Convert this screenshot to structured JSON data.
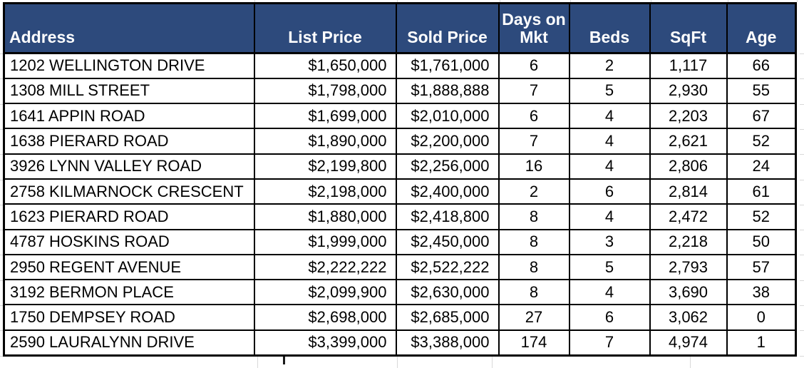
{
  "spreadsheet": {
    "columns": [
      {
        "key": "address",
        "label": "Address"
      },
      {
        "key": "list_price",
        "label": "List Price"
      },
      {
        "key": "sold_price",
        "label": "Sold Price"
      },
      {
        "key": "days_on_mkt",
        "label": "Days on\nMkt"
      },
      {
        "key": "beds",
        "label": "Beds"
      },
      {
        "key": "sqft",
        "label": "SqFt"
      },
      {
        "key": "age",
        "label": "Age"
      }
    ],
    "rows": [
      [
        "1202 WELLINGTON DRIVE",
        "$1,650,000",
        "$1,761,000",
        "6",
        "2",
        "1,117",
        "66"
      ],
      [
        "1308 MILL STREET",
        "$1,798,000",
        "$1,888,888",
        "7",
        "5",
        "2,930",
        "55"
      ],
      [
        "1641 APPIN ROAD",
        "$1,699,000",
        "$2,010,000",
        "6",
        "4",
        "2,203",
        "67"
      ],
      [
        "1638 PIERARD ROAD",
        "$1,890,000",
        "$2,200,000",
        "7",
        "4",
        "2,621",
        "52"
      ],
      [
        "3926 LYNN VALLEY ROAD",
        "$2,199,800",
        "$2,256,000",
        "16",
        "4",
        "2,806",
        "24"
      ],
      [
        "2758 KILMARNOCK CRESCENT",
        "$2,198,000",
        "$2,400,000",
        "2",
        "6",
        "2,814",
        "61"
      ],
      [
        "1623 PIERARD ROAD",
        "$1,880,000",
        "$2,418,800",
        "8",
        "4",
        "2,472",
        "52"
      ],
      [
        "4787 HOSKINS ROAD",
        "$1,999,000",
        "$2,450,000",
        "8",
        "3",
        "2,218",
        "50"
      ],
      [
        "2950 REGENT AVENUE",
        "$2,222,222",
        "$2,522,222",
        "8",
        "5",
        "2,793",
        "57"
      ],
      [
        "3192 BERMON PLACE",
        "$2,099,900",
        "$2,630,000",
        "8",
        "4",
        "3,690",
        "38"
      ],
      [
        "1750 DEMPSEY ROAD",
        "$2,698,000",
        "$2,685,000",
        "27",
        "6",
        "3,062",
        "0"
      ],
      [
        "2590 LAURALYNN DRIVE",
        "$3,399,000",
        "$3,388,000",
        "174",
        "7",
        "4,974",
        "1"
      ]
    ],
    "colors": {
      "header_bg": "#2D4A7C",
      "header_text": "#FFFFFF",
      "cell_bg": "#FFFFFF",
      "cell_text": "#000000",
      "border": "#000000",
      "gridline": "#D9D9D9"
    }
  }
}
